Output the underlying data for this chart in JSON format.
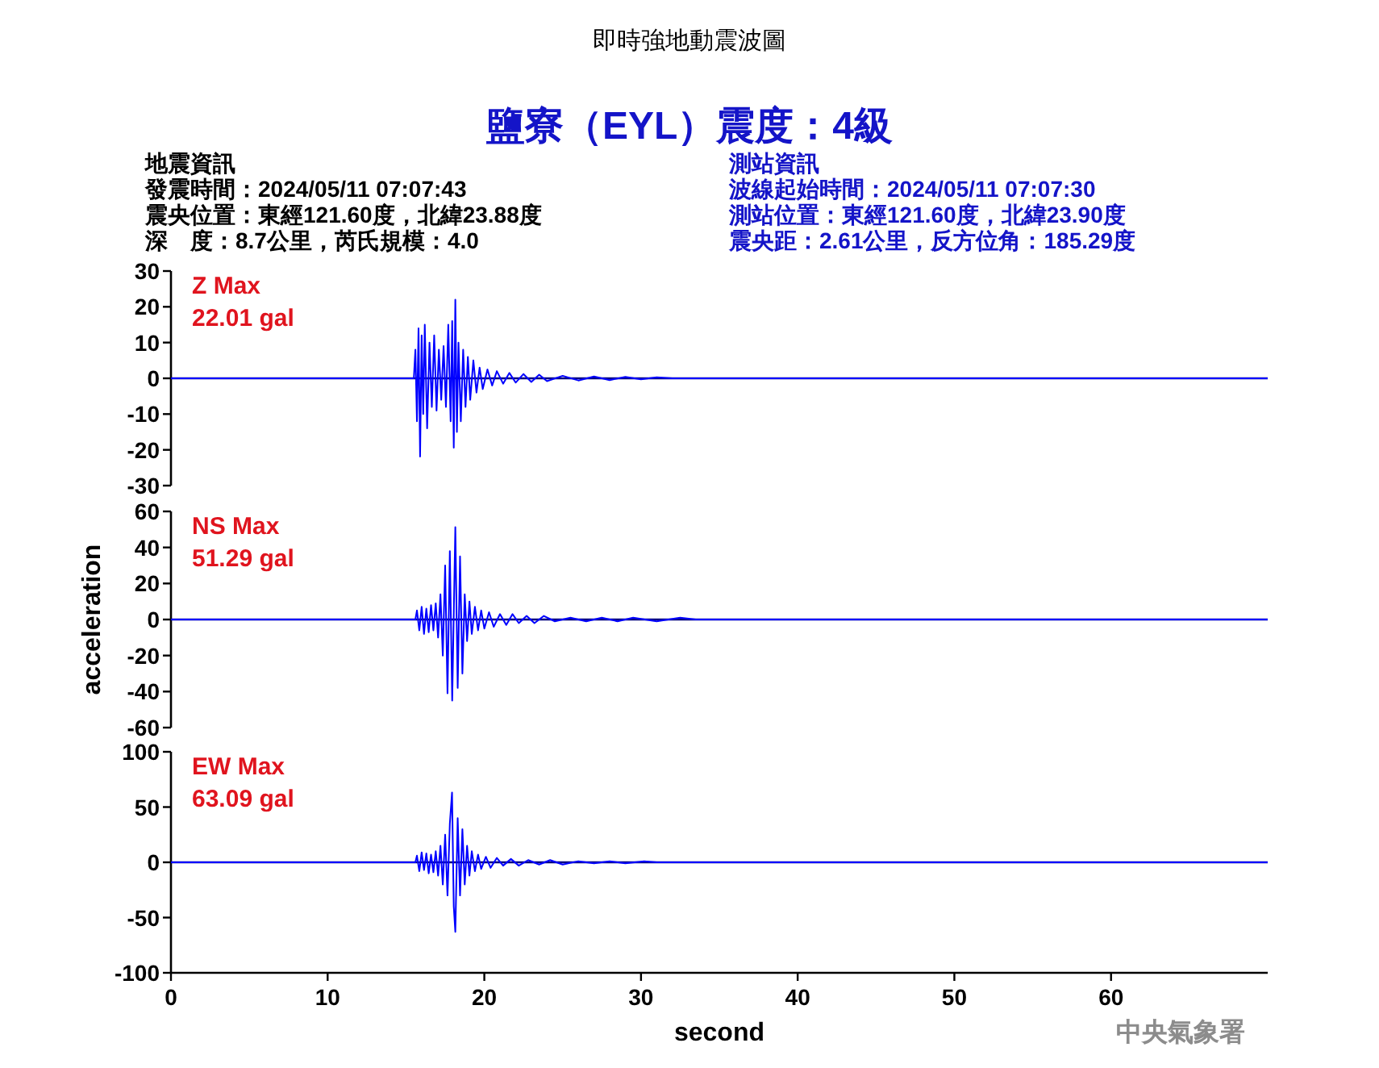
{
  "chart_data": [
    {
      "type": "line",
      "title": "即時強地動震波圖",
      "subtitle": "鹽寮（EYL）震度：4級",
      "annotations": [
        "Z Max",
        "22.01 gal",
        "地震資訊",
        "發震時間：2024/05/11 07:07:43",
        "震央位置：東經121.60度，北緯23.88度",
        "深　度：8.7公里，芮氏規模：4.0",
        "測站資訊",
        "波線起始時間：2024/05/11 07:07:30",
        "測站位置：東經121.60度，北緯23.90度",
        "震央距：2.61公里，反方位角：185.29度"
      ],
      "ref_lines": [
        {
          "axis": "y",
          "value": 0,
          "color": "#000080"
        }
      ],
      "xlim": [
        0,
        70
      ],
      "ylim": [
        -30,
        30
      ],
      "yticks": [
        -30,
        -20,
        -10,
        0,
        10,
        20,
        30
      ],
      "tick_labels": "y",
      "series": [
        {
          "color": "#0000ff",
          "x": [
            0,
            15.5,
            15.6,
            15.7,
            15.8,
            15.9,
            16.0,
            16.1,
            16.2,
            16.35,
            16.5,
            16.65,
            16.8,
            16.95,
            17.1,
            17.25,
            17.4,
            17.55,
            17.7,
            17.85,
            17.95,
            18.05,
            18.15,
            18.25,
            18.35,
            18.5,
            18.65,
            18.8,
            18.95,
            19.1,
            19.3,
            19.5,
            19.7,
            19.9,
            20.2,
            20.5,
            20.8,
            21.2,
            21.6,
            22,
            22.5,
            23,
            23.5,
            24,
            25,
            26,
            27,
            28,
            29,
            30,
            31,
            32,
            70
          ],
          "values": [
            0,
            0,
            8,
            -12,
            14,
            -21.9,
            12,
            -10,
            15,
            -14,
            10,
            -8,
            12,
            -9,
            8,
            -6,
            9,
            -8,
            15,
            -12,
            16,
            -19.4,
            22.01,
            -15,
            10,
            -12,
            8,
            -8,
            6,
            -6,
            5,
            -4,
            3,
            -3,
            2.5,
            -2,
            2,
            -1.5,
            1.5,
            -1.2,
            1.2,
            -1,
            1,
            -0.8,
            0.7,
            -0.6,
            0.5,
            -0.5,
            0.4,
            -0.3,
            0.3,
            0,
            0
          ]
        }
      ]
    },
    {
      "type": "line",
      "ylabel": "acceleration",
      "annotations": [
        "NS Max",
        "51.29 gal"
      ],
      "ref_lines": [
        {
          "axis": "y",
          "value": 0,
          "color": "#000080"
        }
      ],
      "xlim": [
        0,
        70
      ],
      "ylim": [
        -60,
        60
      ],
      "yticks": [
        -60,
        -40,
        -20,
        0,
        20,
        40,
        60
      ],
      "tick_labels": "y",
      "series": [
        {
          "color": "#0000ff",
          "x": [
            0,
            15.6,
            15.7,
            15.85,
            16,
            16.15,
            16.3,
            16.45,
            16.6,
            16.75,
            16.9,
            17.05,
            17.2,
            17.35,
            17.5,
            17.65,
            17.8,
            17.95,
            18.15,
            18.3,
            18.45,
            18.6,
            18.75,
            18.9,
            19.05,
            19.2,
            19.4,
            19.6,
            19.8,
            20.0,
            20.3,
            20.6,
            21,
            21.4,
            21.8,
            22.2,
            22.7,
            23.2,
            23.8,
            24.5,
            25.5,
            26.5,
            27.5,
            28.5,
            29.5,
            31,
            32.5,
            33.5,
            70
          ],
          "values": [
            0,
            0,
            5,
            -6,
            7,
            -8,
            6,
            -7,
            8,
            -6,
            9,
            -10,
            14,
            -20,
            30,
            -41,
            38,
            -45,
            51.29,
            -38,
            35,
            -30,
            14,
            -12,
            10,
            -8,
            7,
            -6,
            5,
            -5,
            4,
            -4,
            3,
            -3,
            3,
            -2,
            2,
            -2,
            2,
            -1,
            1,
            -1,
            1,
            -1,
            1,
            -1,
            1,
            0,
            0
          ]
        }
      ]
    },
    {
      "type": "line",
      "xlabel": "second",
      "annotations": [
        "EW Max",
        "63.09 gal",
        "中央氣象署"
      ],
      "ref_lines": [
        {
          "axis": "y",
          "value": 0,
          "color": "#000080"
        }
      ],
      "xlim": [
        0,
        70
      ],
      "xticks": [
        0,
        10,
        20,
        30,
        40,
        50,
        60
      ],
      "ylim": [
        -100,
        100
      ],
      "yticks": [
        -100,
        -50,
        0,
        50,
        100
      ],
      "series": [
        {
          "color": "#0000ff",
          "x": [
            0,
            15.6,
            15.7,
            15.85,
            16,
            16.15,
            16.3,
            16.45,
            16.6,
            16.75,
            16.9,
            17.05,
            17.2,
            17.35,
            17.5,
            17.65,
            17.8,
            17.94,
            18.05,
            18.15,
            18.3,
            18.45,
            18.6,
            18.75,
            18.9,
            19.05,
            19.2,
            19.4,
            19.6,
            19.8,
            20.1,
            20.4,
            20.8,
            21.2,
            21.7,
            22.2,
            22.8,
            23.5,
            24.2,
            25,
            26,
            27,
            28,
            29,
            30.2,
            31,
            70
          ],
          "values": [
            0,
            0,
            6,
            -8,
            9,
            -7,
            8,
            -10,
            7,
            -9,
            10,
            -12,
            15,
            -20,
            25,
            -30,
            35,
            63.09,
            -40,
            -63,
            40,
            -30,
            30,
            -20,
            15,
            -12,
            10,
            -8,
            7,
            -6,
            5,
            -5,
            4,
            -3,
            3,
            -3,
            2,
            -2,
            2,
            -2,
            1,
            -1,
            1,
            -1,
            1,
            0,
            0
          ]
        }
      ]
    }
  ]
}
